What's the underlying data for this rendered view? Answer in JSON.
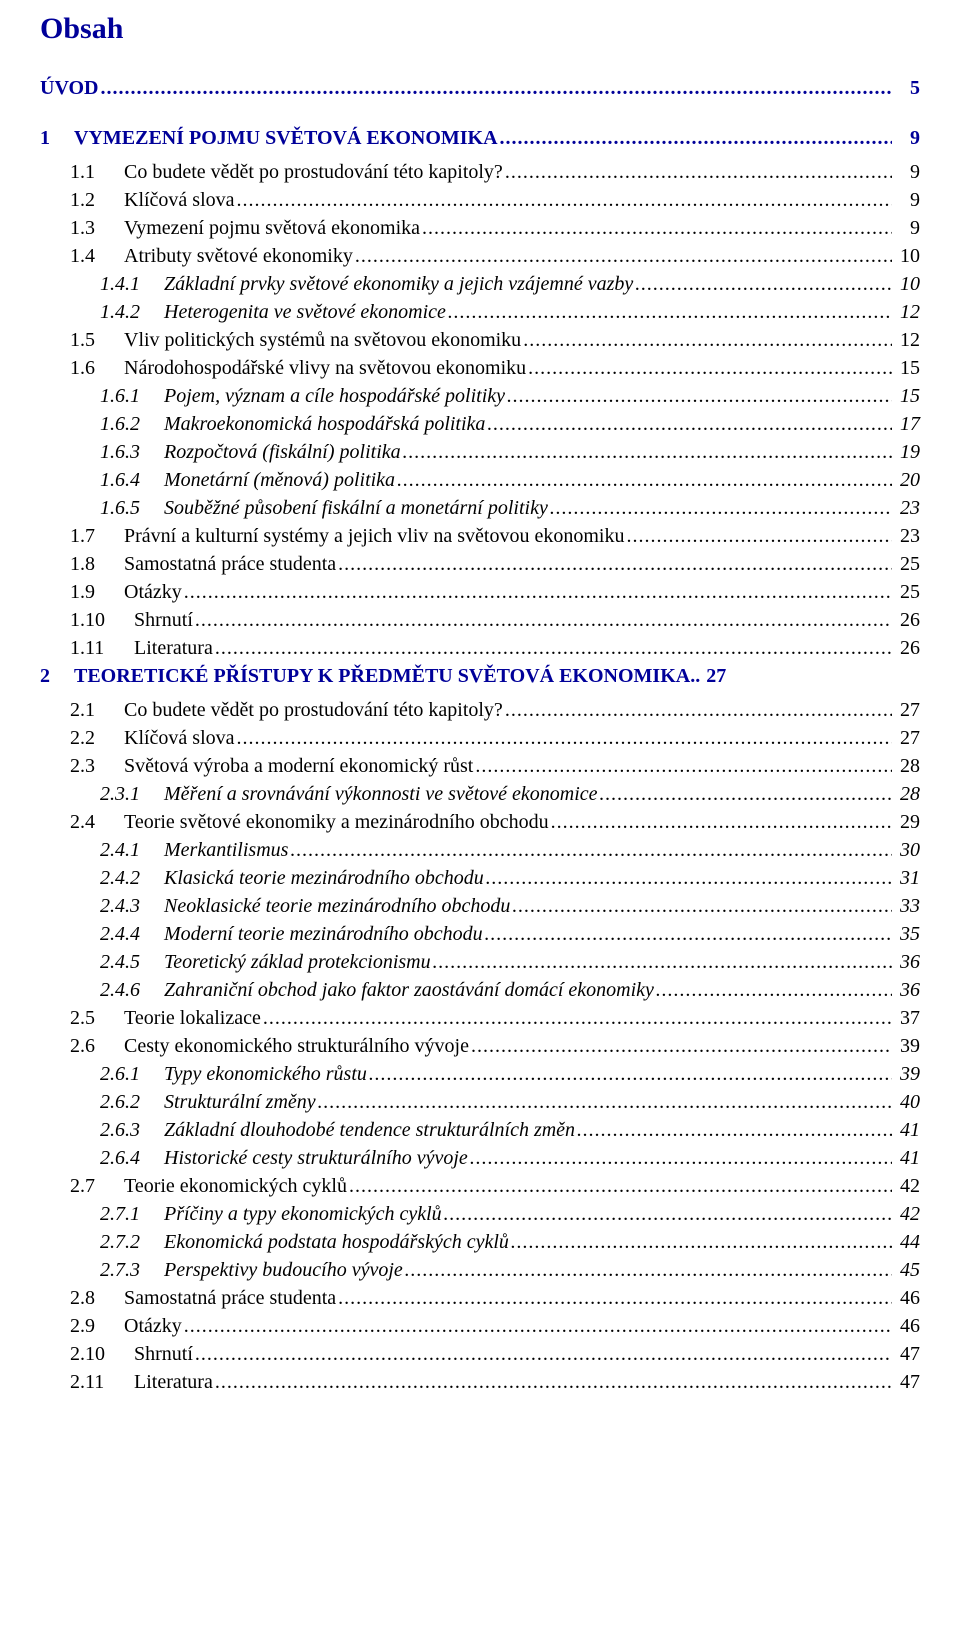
{
  "title": "Obsah",
  "title_color": "#000099",
  "text_color": "#000000",
  "background_color": "#ffffff",
  "entries": [
    {
      "level": "h1",
      "blue": true,
      "num": "",
      "label": "ÚVOD",
      "page": "5",
      "gapAfter": "large"
    },
    {
      "level": "h1",
      "blue": true,
      "num": "1",
      "label": "VYMEZENÍ POJMU SVĚTOVÁ EKONOMIKA",
      "page": "9",
      "gapAfter": "small"
    },
    {
      "level": "h2",
      "blue": false,
      "num": "1.1",
      "label": "Co budete vědět po prostudování této kapitoly?",
      "page": "9"
    },
    {
      "level": "h2",
      "blue": false,
      "num": "1.2",
      "label": "Klíčová slova",
      "page": "9"
    },
    {
      "level": "h2",
      "blue": false,
      "num": "1.3",
      "label": "Vymezení pojmu světová ekonomika",
      "page": "9"
    },
    {
      "level": "h2",
      "blue": false,
      "num": "1.4",
      "label": "Atributy světové ekonomiky",
      "page": "10"
    },
    {
      "level": "h3",
      "blue": false,
      "num": "1.4.1",
      "label": "Základní prvky světové ekonomiky a jejich vzájemné vazby",
      "page": "10"
    },
    {
      "level": "h3",
      "blue": false,
      "num": "1.4.2",
      "label": "Heterogenita ve světové ekonomice",
      "page": "12"
    },
    {
      "level": "h2",
      "blue": false,
      "num": "1.5",
      "label": "Vliv politických systémů na světovou ekonomiku",
      "page": "12"
    },
    {
      "level": "h2",
      "blue": false,
      "num": "1.6",
      "label": "Národohospodářské vlivy na světovou ekonomiku",
      "page": "15"
    },
    {
      "level": "h3",
      "blue": false,
      "num": "1.6.1",
      "label": "Pojem, význam a cíle hospodářské politiky",
      "page": "15"
    },
    {
      "level": "h3",
      "blue": false,
      "num": "1.6.2",
      "label": "Makroekonomická hospodářská politika",
      "page": "17"
    },
    {
      "level": "h3",
      "blue": false,
      "num": "1.6.3",
      "label": "Rozpočtová (fiskální) politika",
      "page": "19"
    },
    {
      "level": "h3",
      "blue": false,
      "num": "1.6.4",
      "label": "Monetární (měnová) politika",
      "page": "20"
    },
    {
      "level": "h3",
      "blue": false,
      "num": "1.6.5",
      "label": "Souběžné působení fiskální a monetární politiky",
      "page": "23"
    },
    {
      "level": "h2",
      "blue": false,
      "num": "1.7",
      "label": "Právní a kulturní systémy a jejich vliv na světovou ekonomiku",
      "page": "23"
    },
    {
      "level": "h2",
      "blue": false,
      "num": "1.8",
      "label": "Samostatná práce studenta",
      "page": "25"
    },
    {
      "level": "h2",
      "blue": false,
      "num": "1.9",
      "label": "Otázky",
      "page": "25"
    },
    {
      "level": "h2",
      "blue": false,
      "wide": true,
      "num": "1.10",
      "label": "Shrnutí",
      "page": "26"
    },
    {
      "level": "h2",
      "blue": false,
      "wide": true,
      "num": "1.11",
      "label": "Literatura",
      "page": "26"
    },
    {
      "level": "h1",
      "blue": true,
      "num": "2",
      "label": "TEORETICKÉ PŘÍSTUPY K PŘEDMĚTU SVĚTOVÁ EKONOMIKA..",
      "page": "27",
      "noDots": true,
      "gapAfter": "small"
    },
    {
      "level": "h2",
      "blue": false,
      "num": "2.1",
      "label": "Co budete vědět po prostudování této kapitoly?",
      "page": "27"
    },
    {
      "level": "h2",
      "blue": false,
      "num": "2.2",
      "label": "Klíčová slova",
      "page": "27"
    },
    {
      "level": "h2",
      "blue": false,
      "num": "2.3",
      "label": "Světová výroba a moderní ekonomický růst",
      "page": "28"
    },
    {
      "level": "h3",
      "blue": false,
      "num": "2.3.1",
      "label": "Měření a srovnávání výkonnosti ve světové ekonomice",
      "page": "28"
    },
    {
      "level": "h2",
      "blue": false,
      "num": "2.4",
      "label": "Teorie světové ekonomiky a mezinárodního obchodu",
      "page": "29"
    },
    {
      "level": "h3",
      "blue": false,
      "num": "2.4.1",
      "label": "Merkantilismus",
      "page": "30"
    },
    {
      "level": "h3",
      "blue": false,
      "num": "2.4.2",
      "label": "Klasická teorie mezinárodního obchodu",
      "page": "31"
    },
    {
      "level": "h3",
      "blue": false,
      "num": "2.4.3",
      "label": "Neoklasické teorie mezinárodního obchodu",
      "page": "33"
    },
    {
      "level": "h3",
      "blue": false,
      "num": "2.4.4",
      "label": "Moderní teorie mezinárodního obchodu",
      "page": "35"
    },
    {
      "level": "h3",
      "blue": false,
      "num": "2.4.5",
      "label": "Teoretický základ protekcionismu",
      "page": "36"
    },
    {
      "level": "h3",
      "blue": false,
      "num": "2.4.6",
      "label": "Zahraniční obchod jako faktor zaostávání domácí ekonomiky",
      "page": "36"
    },
    {
      "level": "h2",
      "blue": false,
      "num": "2.5",
      "label": "Teorie lokalizace",
      "page": "37"
    },
    {
      "level": "h2",
      "blue": false,
      "num": "2.6",
      "label": "Cesty ekonomického strukturálního vývoje",
      "page": "39"
    },
    {
      "level": "h3",
      "blue": false,
      "num": "2.6.1",
      "label": "Typy ekonomického růstu",
      "page": "39"
    },
    {
      "level": "h3",
      "blue": false,
      "num": "2.6.2",
      "label": "Strukturální změny",
      "page": "40"
    },
    {
      "level": "h3",
      "blue": false,
      "num": "2.6.3",
      "label": "Základní dlouhodobé tendence strukturálních změn",
      "page": "41"
    },
    {
      "level": "h3",
      "blue": false,
      "num": "2.6.4",
      "label": "Historické cesty strukturálního vývoje",
      "page": "41"
    },
    {
      "level": "h2",
      "blue": false,
      "num": "2.7",
      "label": "Teorie ekonomických cyklů",
      "page": "42"
    },
    {
      "level": "h3",
      "blue": false,
      "num": "2.7.1",
      "label": "Příčiny a typy ekonomických cyklů",
      "page": "42"
    },
    {
      "level": "h3",
      "blue": false,
      "num": "2.7.2",
      "label": "Ekonomická podstata hospodářských cyklů",
      "page": "44"
    },
    {
      "level": "h3",
      "blue": false,
      "num": "2.7.3",
      "label": "Perspektivy budoucího vývoje",
      "page": "45"
    },
    {
      "level": "h2",
      "blue": false,
      "num": "2.8",
      "label": "Samostatná práce studenta",
      "page": "46"
    },
    {
      "level": "h2",
      "blue": false,
      "num": "2.9",
      "label": "Otázky",
      "page": "46"
    },
    {
      "level": "h2",
      "blue": false,
      "wide": true,
      "num": "2.10",
      "label": "Shrnutí",
      "page": "47"
    },
    {
      "level": "h2",
      "blue": false,
      "wide": true,
      "num": "2.11",
      "label": "Literatura",
      "page": "47"
    }
  ]
}
